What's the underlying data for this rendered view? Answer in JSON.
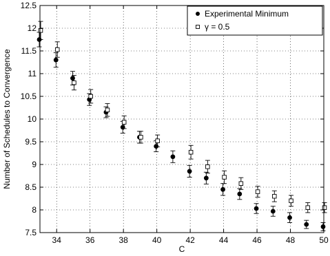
{
  "chart_data": {
    "type": "scatter",
    "xlabel": "C",
    "ylabel": "Number of Schedules to Convergence",
    "xlim": [
      33,
      50
    ],
    "ylim": [
      7.5,
      12.5
    ],
    "xticks": [
      34,
      36,
      38,
      40,
      42,
      44,
      46,
      48,
      50
    ],
    "xtick_labels": [
      "34",
      "36",
      "38",
      "40",
      "42",
      "44",
      "46",
      "48",
      "50"
    ],
    "yticks": [
      7.5,
      8,
      8.5,
      9,
      9.5,
      10,
      10.5,
      11,
      11.5,
      12,
      12.5
    ],
    "ytick_labels": [
      "7.5",
      "8",
      "8.5",
      "9",
      "9.5",
      "10",
      "10.5",
      "11",
      "11.5",
      "12",
      "12.5"
    ],
    "grid": true,
    "legend_position": "top-right",
    "series": [
      {
        "name": "Experimental Minimum",
        "marker": "filled-circle",
        "color": "#000000",
        "x": [
          33,
          34,
          35,
          36,
          37,
          38,
          39,
          40,
          41,
          42,
          43,
          44,
          45,
          46,
          47,
          48,
          49,
          50
        ],
        "y": [
          11.75,
          11.3,
          10.9,
          10.43,
          10.15,
          9.82,
          9.6,
          9.4,
          9.17,
          8.85,
          8.7,
          8.45,
          8.35,
          8.03,
          7.97,
          7.83,
          7.68,
          7.63
        ],
        "err": [
          0.16,
          0.16,
          0.15,
          0.13,
          0.12,
          0.13,
          0.13,
          0.12,
          0.13,
          0.13,
          0.13,
          0.13,
          0.12,
          0.11,
          0.11,
          0.11,
          0.09,
          0.09
        ]
      },
      {
        "name": "γ = 0.5",
        "marker": "open-square",
        "color": "#000000",
        "x": [
          33,
          34,
          35,
          36,
          37,
          38,
          39,
          40,
          42,
          43,
          44,
          45,
          46,
          47,
          48,
          49,
          50
        ],
        "y": [
          11.95,
          11.53,
          10.8,
          10.5,
          10.2,
          9.93,
          9.6,
          9.52,
          9.27,
          8.95,
          8.72,
          8.58,
          8.4,
          8.3,
          8.2,
          8.05,
          8.05
        ],
        "err": [
          0.2,
          0.17,
          0.16,
          0.15,
          0.14,
          0.14,
          0.13,
          0.13,
          0.15,
          0.14,
          0.14,
          0.13,
          0.12,
          0.12,
          0.12,
          0.11,
          0.11
        ]
      }
    ]
  }
}
